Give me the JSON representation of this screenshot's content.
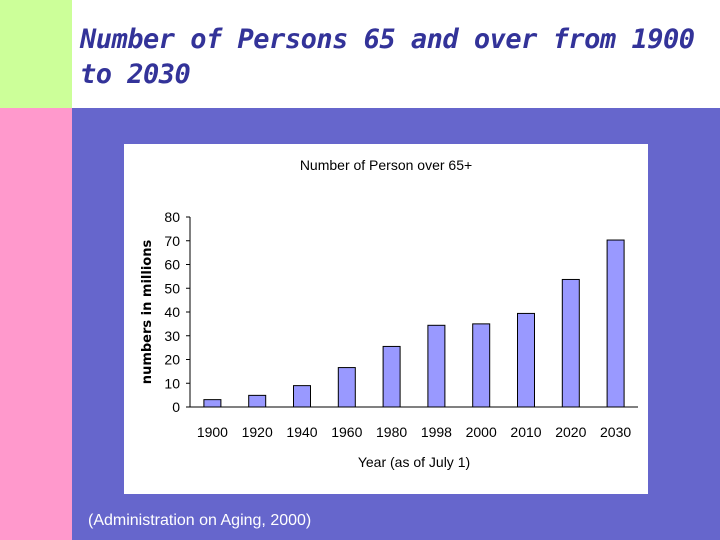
{
  "slide": {
    "title": "Number of Persons 65 and over from 1900 to 2030",
    "citation": "(Administration on Aging, 2000)"
  },
  "colors": {
    "green_block": "#ccff99",
    "pink_block": "#ff99cc",
    "panel": "#6666cc",
    "title_text": "#333399",
    "bar_fill": "#9999ff",
    "bar_stroke": "#000000"
  },
  "chart_data": {
    "type": "bar",
    "title": "Number of Person over 65+",
    "xlabel": "Year (as of July 1)",
    "ylabel": "numbers in millions",
    "categories": [
      "1900",
      "1920",
      "1940",
      "1960",
      "1980",
      "1998",
      "2000",
      "2010",
      "2020",
      "2030"
    ],
    "values": [
      3.1,
      4.9,
      9.0,
      16.6,
      25.5,
      34.4,
      35.0,
      39.4,
      53.7,
      70.3
    ],
    "ylim": [
      0,
      80
    ],
    "yticks": [
      0,
      10,
      20,
      30,
      40,
      50,
      60,
      70,
      80
    ],
    "grid": false,
    "legend": "none"
  }
}
